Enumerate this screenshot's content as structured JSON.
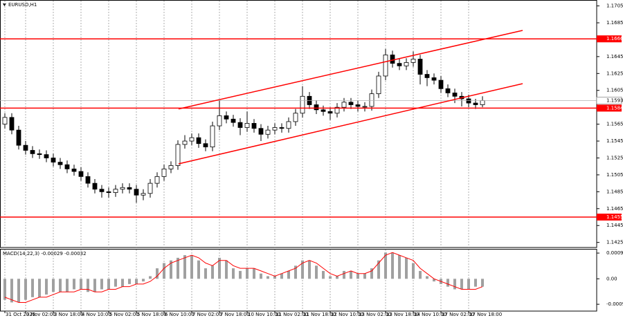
{
  "chart_data": [
    {
      "type": "candlestick",
      "title": "EURUSD,H1",
      "open": [
        1.1565,
        1.1573,
        1.1558,
        1.154,
        1.1534,
        1.153,
        1.1529,
        1.1525,
        1.152,
        1.1517,
        1.1512,
        1.1509,
        1.1503,
        1.1495,
        1.1488,
        1.1485,
        1.1484,
        1.1488,
        1.149,
        1.1488,
        1.1481,
        1.1483,
        1.1495,
        1.1503,
        1.1512,
        1.1516,
        1.1541,
        1.1545,
        1.1549,
        1.1542,
        1.1538,
        1.1563,
        1.1575,
        1.1571,
        1.1567,
        1.1561,
        1.1566,
        1.156,
        1.1553,
        1.1558,
        1.1561,
        1.156,
        1.1568,
        1.1578,
        1.1598,
        1.1588,
        1.1582,
        1.158,
        1.1578,
        1.1585,
        1.1591,
        1.1588,
        1.1586,
        1.1586,
        1.1601,
        1.1622,
        1.1647,
        1.1637,
        1.1634,
        1.1638,
        1.1642,
        1.1624,
        1.162,
        1.1617,
        1.1607,
        1.1602,
        1.1598,
        1.1595,
        1.159,
        1.1588
      ],
      "high": [
        1.1578,
        1.1578,
        1.1563,
        1.1545,
        1.1539,
        1.1535,
        1.1534,
        1.153,
        1.1525,
        1.1522,
        1.1517,
        1.1514,
        1.1508,
        1.15,
        1.1493,
        1.149,
        1.1493,
        1.1495,
        1.1495,
        1.1493,
        1.1488,
        1.15,
        1.1508,
        1.1517,
        1.1521,
        1.1546,
        1.1552,
        1.1554,
        1.1554,
        1.1547,
        1.1568,
        1.1593,
        1.158,
        1.1576,
        1.1572,
        1.158,
        1.1571,
        1.1565,
        1.1563,
        1.1566,
        1.1566,
        1.1573,
        1.1583,
        1.161,
        1.1603,
        1.1593,
        1.1587,
        1.1585,
        1.159,
        1.1596,
        1.1596,
        1.1593,
        1.1591,
        1.1606,
        1.1627,
        1.1654,
        1.1652,
        1.1642,
        1.1643,
        1.1651,
        1.1647,
        1.1629,
        1.1625,
        1.1622,
        1.1612,
        1.1607,
        1.1603,
        1.16,
        1.1595,
        1.1598
      ],
      "low": [
        1.156,
        1.1553,
        1.1535,
        1.1529,
        1.1525,
        1.1524,
        1.152,
        1.1515,
        1.1512,
        1.1507,
        1.1504,
        1.1498,
        1.149,
        1.1483,
        1.1478,
        1.1478,
        1.1479,
        1.1483,
        1.1483,
        1.1472,
        1.1475,
        1.1478,
        1.149,
        1.1498,
        1.1507,
        1.1511,
        1.1536,
        1.154,
        1.1537,
        1.1533,
        1.1533,
        1.1558,
        1.1566,
        1.1562,
        1.1552,
        1.1556,
        1.1555,
        1.1545,
        1.1548,
        1.1553,
        1.1555,
        1.1555,
        1.1563,
        1.1573,
        1.1583,
        1.1577,
        1.1575,
        1.157,
        1.1573,
        1.158,
        1.1583,
        1.158,
        1.158,
        1.1581,
        1.1596,
        1.1617,
        1.1632,
        1.1629,
        1.1629,
        1.1633,
        1.1612,
        1.161,
        1.1612,
        1.1602,
        1.1597,
        1.159,
        1.1586,
        1.1585,
        1.1583,
        1.1585
      ],
      "close": [
        1.1573,
        1.1558,
        1.154,
        1.1534,
        1.153,
        1.1529,
        1.1525,
        1.152,
        1.1517,
        1.1512,
        1.1509,
        1.1503,
        1.1495,
        1.1488,
        1.1485,
        1.1484,
        1.1488,
        1.149,
        1.1488,
        1.1481,
        1.1483,
        1.1495,
        1.1503,
        1.1512,
        1.1516,
        1.1541,
        1.1545,
        1.1549,
        1.1542,
        1.1538,
        1.1563,
        1.1575,
        1.1571,
        1.1567,
        1.1561,
        1.1566,
        1.156,
        1.1553,
        1.1558,
        1.1561,
        1.156,
        1.1568,
        1.1578,
        1.1598,
        1.1588,
        1.1582,
        1.158,
        1.1578,
        1.1585,
        1.1591,
        1.1588,
        1.1586,
        1.1586,
        1.1601,
        1.1622,
        1.1647,
        1.1637,
        1.1634,
        1.1638,
        1.1642,
        1.1624,
        1.162,
        1.1617,
        1.1607,
        1.1602,
        1.1598,
        1.1595,
        1.159,
        1.1588,
        1.1593
      ],
      "color_up": "#ffffff",
      "color_down": "#000000",
      "xlim": [
        -0.7,
        85.5
      ],
      "ylim": [
        1.1419,
        1.1712
      ],
      "yticks": [
        1.1705,
        1.1685,
        1.1645,
        1.1625,
        1.1605,
        1.1565,
        1.1545,
        1.1525,
        1.1505,
        1.1485,
        1.1465,
        1.1445,
        1.1425
      ],
      "xticks": [
        {
          "value": 0,
          "label": "31 Oct 2025"
        },
        {
          "value": 3,
          "label": "3 Nov 02:00"
        },
        {
          "value": 7,
          "label": "3 Nov 18:00"
        },
        {
          "value": 11,
          "label": "4 Nov 10:00"
        },
        {
          "value": 15,
          "label": "5 Nov 02:00"
        },
        {
          "value": 19,
          "label": "5 Nov 18:00"
        },
        {
          "value": 23,
          "label": "6 Nov 10:00"
        },
        {
          "value": 27,
          "label": "7 Nov 02:00"
        },
        {
          "value": 31,
          "label": "7 Nov 18:00"
        },
        {
          "value": 35,
          "label": "10 Nov 10:00"
        },
        {
          "value": 39,
          "label": "11 Nov 02:00"
        },
        {
          "value": 43,
          "label": "11 Nov 18:00"
        },
        {
          "value": 47,
          "label": "12 Nov 10:00"
        },
        {
          "value": 51,
          "label": "13 Nov 02:00"
        },
        {
          "value": 55,
          "label": "13 Nov 18:00"
        },
        {
          "value": 59,
          "label": "14 Nov 10:00"
        },
        {
          "value": 63,
          "label": "17 Nov 02:00"
        },
        {
          "value": 67,
          "label": "17 Nov 18:00"
        }
      ],
      "grid": "x",
      "levels": {
        "values": [
          1.1666,
          1.1584,
          1.1455
        ],
        "color": "#ff0000"
      },
      "last_price": 1.1593,
      "trendlines": {
        "color": "#ff0000",
        "lines": [
          {
            "x": [
              25.1,
              74.8
            ],
            "y": [
              1.1583,
              1.1676
            ]
          },
          {
            "x": [
              25.1,
              74.8
            ],
            "y": [
              1.1518,
              1.1613
            ]
          }
        ]
      }
    },
    {
      "type": "bar",
      "title": "MACD(14,22,3) -0.00029 -0.00032",
      "values": [
        -0.0008,
        -0.0009,
        -0.0009,
        -0.0008,
        -0.0007,
        -0.0007,
        -0.0006,
        -0.0005,
        -0.0005,
        -0.0005,
        -0.0004,
        -0.0004,
        -0.0005,
        -0.0005,
        -0.0004,
        -0.0004,
        -0.0003,
        -0.0003,
        -0.0002,
        -0.0002,
        -0.0001,
        0.0001,
        0.0004,
        0.0006,
        0.0007,
        0.0008,
        0.0009,
        0.0009,
        0.0007,
        0.0004,
        0.0005,
        0.0008,
        0.0007,
        0.0004,
        0.0003,
        0.0004,
        0.0004,
        0.0002,
        0.0001,
        0.0001,
        0.0002,
        0.0003,
        0.0005,
        0.0007,
        0.0007,
        0.0005,
        0.0003,
        0.0001,
        0.0001,
        0.0003,
        0.0003,
        0.0002,
        0.0002,
        0.0004,
        0.0007,
        0.001,
        0.001,
        0.0009,
        0.0008,
        0.0006,
        0.0003,
        0.0001,
        -0.0001,
        -0.0002,
        -0.0003,
        -0.0004,
        -0.0004,
        -0.0004,
        -0.0003,
        -0.0003
      ],
      "color": "#a0a0a0",
      "signal": {
        "color": "#ff0000",
        "values": [
          -0.0007,
          -0.0008,
          -0.0009,
          -0.0009,
          -0.0008,
          -0.0007,
          -0.0007,
          -0.0006,
          -0.0005,
          -0.0005,
          -0.0005,
          -0.0004,
          -0.0004,
          -0.0005,
          -0.0005,
          -0.0004,
          -0.0004,
          -0.0003,
          -0.0003,
          -0.0002,
          -0.0002,
          -0.0001,
          0.0001,
          0.0004,
          0.0006,
          0.0007,
          0.0008,
          0.0009,
          0.0008,
          0.0006,
          0.0005,
          0.0007,
          0.0007,
          0.0005,
          0.0004,
          0.0004,
          0.0004,
          0.0003,
          0.0002,
          0.0001,
          0.0002,
          0.0003,
          0.0004,
          0.0006,
          0.0007,
          0.0006,
          0.0004,
          0.0002,
          0.0001,
          0.0002,
          0.0003,
          0.0002,
          0.0002,
          0.0003,
          0.0006,
          0.0009,
          0.001,
          0.0009,
          0.0008,
          0.0007,
          0.0004,
          0.0002,
          0,
          -0.0001,
          -0.0002,
          -0.0003,
          -0.0004,
          -0.0004,
          -0.0004,
          -0.0003
        ]
      },
      "ylim": [
        -0.00123,
        0.00114
      ],
      "yticks": [
        0.00098,
        {
          "value": 0,
          "label": "0.00"
        },
        -0.00097
      ]
    }
  ]
}
